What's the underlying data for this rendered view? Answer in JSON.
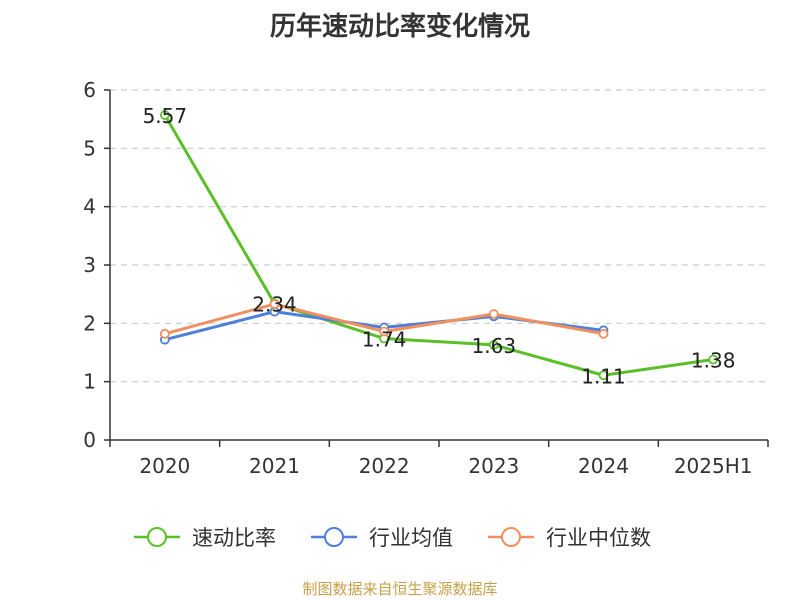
{
  "chart_data": {
    "type": "line",
    "title": "历年速动比率变化情况",
    "categories": [
      "2020",
      "2021",
      "2022",
      "2023",
      "2024",
      "2025H1"
    ],
    "ylim": [
      0,
      6
    ],
    "yticks": [
      0,
      1,
      2,
      3,
      4,
      5,
      6
    ],
    "grid": true,
    "legend_position": "bottom",
    "series": [
      {
        "name": "速动比率",
        "color": "#5bbf2a",
        "values": [
          5.57,
          2.34,
          1.74,
          1.63,
          1.11,
          1.38
        ],
        "labels": [
          "5.57",
          "2.34",
          "1.74",
          "1.63",
          "1.11",
          "1.38"
        ]
      },
      {
        "name": "行业均值",
        "color": "#4f7fd6",
        "values": [
          1.72,
          2.2,
          1.93,
          2.12,
          1.88,
          null
        ]
      },
      {
        "name": "行业中位数",
        "color": "#f09060",
        "values": [
          1.82,
          2.33,
          1.86,
          2.16,
          1.82,
          null
        ]
      }
    ]
  },
  "source_text": "制图数据来自恒生聚源数据库"
}
